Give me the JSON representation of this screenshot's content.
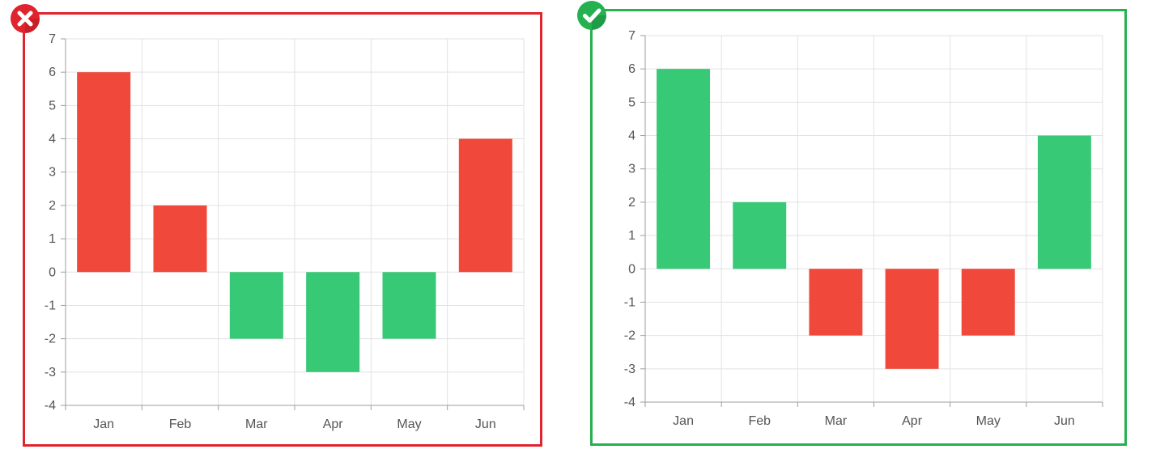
{
  "colors": {
    "positive_green": "#37c975",
    "negative_red": "#f0483a",
    "wrong_border": "#e0242d",
    "right_border": "#26b150",
    "grid": "#e2e2e2",
    "axis": "#9e9e9e",
    "text": "#555555"
  },
  "badges": {
    "wrong": {
      "icon": "cross-icon",
      "color": "#e0242d"
    },
    "right": {
      "icon": "check-icon",
      "color": "#26b150"
    }
  },
  "chart_data": [
    {
      "type": "bar",
      "categories": [
        "Jan",
        "Feb",
        "Mar",
        "Apr",
        "May",
        "Jun"
      ],
      "values": [
        6,
        2,
        -2,
        -3,
        -2,
        4
      ],
      "ylim": [
        -4,
        7
      ],
      "yticks": [
        "7",
        "6",
        "5",
        "4",
        "3",
        "2",
        "1",
        "0",
        "-1",
        "-2",
        "-3",
        "-4"
      ],
      "grid": true,
      "positive_color": "#f0483a",
      "negative_color": "#37c975",
      "title": "",
      "xlabel": "",
      "ylabel": ""
    },
    {
      "type": "bar",
      "categories": [
        "Jan",
        "Feb",
        "Mar",
        "Apr",
        "May",
        "Jun"
      ],
      "values": [
        6,
        2,
        -2,
        -3,
        -2,
        4
      ],
      "ylim": [
        -4,
        7
      ],
      "yticks": [
        "7",
        "6",
        "5",
        "4",
        "3",
        "2",
        "1",
        "0",
        "-1",
        "-2",
        "-3",
        "-4"
      ],
      "grid": true,
      "positive_color": "#37c975",
      "negative_color": "#f0483a",
      "title": "",
      "xlabel": "",
      "ylabel": ""
    }
  ]
}
